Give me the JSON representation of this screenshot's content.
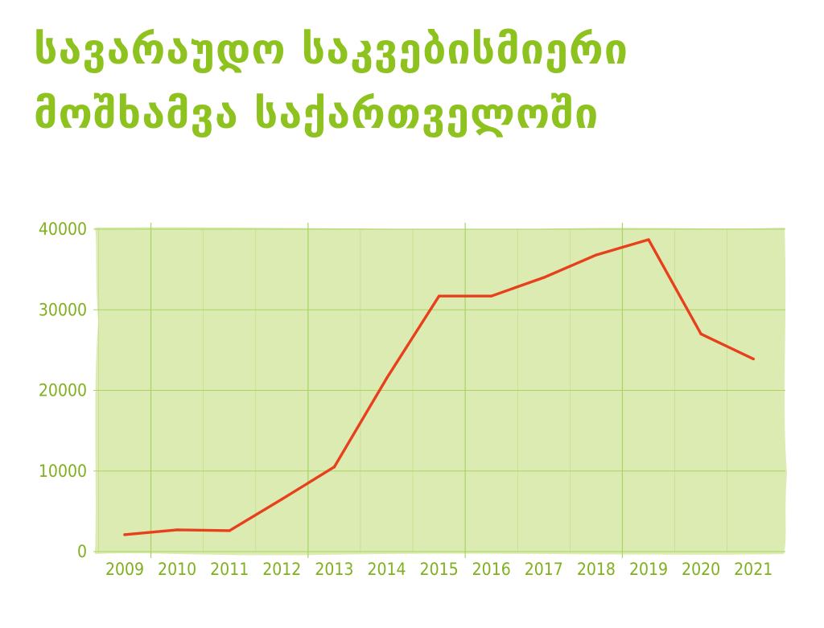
{
  "chart_data": {
    "type": "line",
    "title": "სავარაუდო საკვებისმიერი მოშხამვა საქართველოში",
    "xlabel": "",
    "ylabel": "",
    "x": [
      "2009",
      "2010",
      "2011",
      "2012",
      "2013",
      "2014",
      "2015",
      "2016",
      "2017",
      "2018",
      "2019",
      "2020",
      "2021"
    ],
    "series": [
      {
        "values": [
          2100,
          2700,
          2600,
          6500,
          10500,
          21500,
          31700,
          31700,
          34000,
          36800,
          38700,
          27000,
          23900
        ]
      }
    ],
    "ylim": [
      0,
      40000
    ],
    "yticks": [
      "0",
      "10000",
      "20000",
      "30000",
      "40000"
    ],
    "grid": true,
    "legend": "none"
  },
  "colors": {
    "title": "#8dc21f",
    "plot_background": "#dcebb2",
    "grid": "#a9d463",
    "line": "#e8401c",
    "tick_label": "#80b01e"
  }
}
